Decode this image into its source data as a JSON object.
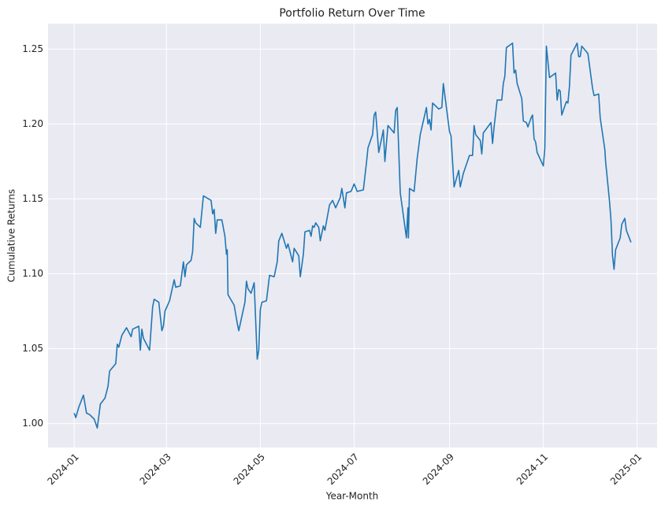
{
  "chart_data": {
    "type": "line",
    "title": "Portfolio Return Over Time",
    "x_label": "Year-Month",
    "y_label": "Cumulative Returns",
    "color": "#1f77b4",
    "grid": true,
    "xlim": [
      -17,
      379
    ],
    "ylim": [
      0.984,
      1.267
    ],
    "xticks": [
      {
        "value": 0,
        "label": "2024-01"
      },
      {
        "value": 60,
        "label": "2024-03"
      },
      {
        "value": 121,
        "label": "2024-05"
      },
      {
        "value": 182,
        "label": "2024-07"
      },
      {
        "value": 244,
        "label": "2024-09"
      },
      {
        "value": 305,
        "label": "2024-11"
      },
      {
        "value": 366,
        "label": "2025-01"
      }
    ],
    "yticks": [
      {
        "value": 1,
        "label": "1.00"
      },
      1.05,
      {
        "value": 1.1,
        "label": "1.10"
      },
      1.15,
      {
        "value": 1.2,
        "label": "1.20"
      },
      1.25
    ],
    "x": [
      0,
      1,
      3,
      6,
      8,
      10,
      13,
      15,
      17,
      20,
      22,
      23,
      27,
      28,
      29,
      31,
      34,
      37,
      38,
      42,
      43,
      44,
      45,
      49,
      51,
      52,
      55,
      57,
      58,
      59,
      62,
      65,
      66,
      69,
      71,
      72,
      73,
      76,
      77,
      78,
      79,
      82,
      84,
      89,
      90,
      91,
      92,
      93,
      96,
      98,
      99,
      99.5,
      100,
      104,
      106,
      107,
      111,
      112,
      113,
      115,
      117,
      119,
      120,
      121,
      122,
      125,
      127,
      130,
      132,
      133,
      135,
      138,
      139,
      142,
      143,
      146,
      147,
      149,
      150,
      153,
      154,
      155,
      156,
      157,
      159,
      160,
      162,
      163,
      166,
      168,
      170,
      173,
      174,
      176,
      177,
      180,
      182,
      184,
      188,
      190,
      191,
      194,
      195,
      196,
      198,
      201,
      202,
      204,
      208,
      209,
      210,
      212,
      216,
      217,
      217.3,
      218,
      221,
      223,
      225,
      229,
      230,
      231,
      232,
      233,
      237,
      239,
      240,
      244,
      245,
      247,
      250,
      251,
      253,
      257,
      259,
      260,
      261,
      264,
      265,
      266,
      271,
      272,
      273,
      275,
      278,
      279,
      280,
      281,
      285,
      286,
      287,
      288,
      291,
      292,
      294,
      295,
      297,
      298,
      299,
      300,
      301,
      305,
      306,
      307,
      309,
      313,
      314,
      315,
      316,
      317,
      320,
      321,
      322,
      323,
      327,
      328,
      329,
      330,
      334,
      337,
      338,
      341,
      342,
      343,
      345,
      345.5,
      348,
      349,
      350,
      351,
      352,
      355,
      356,
      358,
      359,
      362
    ],
    "values": [
      1.007,
      1.004,
      1.011,
      1.019,
      1.007,
      1.006,
      1.003,
      0.997,
      1.013,
      1.017,
      1.025,
      1.035,
      1.04,
      1.053,
      1.051,
      1.059,
      1.064,
      1.058,
      1.063,
      1.065,
      1.049,
      1.063,
      1.057,
      1.049,
      1.078,
      1.083,
      1.081,
      1.062,
      1.065,
      1.075,
      1.082,
      1.096,
      1.091,
      1.092,
      1.108,
      1.098,
      1.106,
      1.109,
      1.115,
      1.137,
      1.134,
      1.131,
      1.152,
      1.149,
      1.14,
      1.143,
      1.127,
      1.136,
      1.136,
      1.125,
      1.113,
      1.116,
      1.086,
      1.079,
      1.067,
      1.062,
      1.081,
      1.095,
      1.09,
      1.087,
      1.094,
      1.043,
      1.049,
      1.076,
      1.081,
      1.082,
      1.099,
      1.098,
      1.108,
      1.122,
      1.127,
      1.117,
      1.12,
      1.108,
      1.117,
      1.112,
      1.098,
      1.113,
      1.128,
      1.129,
      1.125,
      1.132,
      1.131,
      1.134,
      1.131,
      1.122,
      1.132,
      1.129,
      1.146,
      1.149,
      1.144,
      1.151,
      1.157,
      1.144,
      1.154,
      1.155,
      1.16,
      1.155,
      1.156,
      1.174,
      1.184,
      1.193,
      1.206,
      1.208,
      1.181,
      1.196,
      1.175,
      1.199,
      1.194,
      1.209,
      1.211,
      1.154,
      1.124,
      1.144,
      1.124,
      1.157,
      1.155,
      1.177,
      1.193,
      1.211,
      1.2,
      1.203,
      1.196,
      1.214,
      1.21,
      1.211,
      1.227,
      1.195,
      1.192,
      1.158,
      1.169,
      1.158,
      1.167,
      1.179,
      1.179,
      1.199,
      1.193,
      1.189,
      1.18,
      1.194,
      1.201,
      1.187,
      1.198,
      1.216,
      1.216,
      1.227,
      1.232,
      1.251,
      1.254,
      1.234,
      1.236,
      1.227,
      1.217,
      1.202,
      1.201,
      1.198,
      1.204,
      1.206,
      1.19,
      1.188,
      1.181,
      1.172,
      1.184,
      1.252,
      1.231,
      1.234,
      1.216,
      1.223,
      1.222,
      1.206,
      1.215,
      1.214,
      1.225,
      1.246,
      1.254,
      1.245,
      1.245,
      1.252,
      1.247,
      1.224,
      1.219,
      1.22,
      1.204,
      1.197,
      1.183,
      1.175,
      1.149,
      1.136,
      1.112,
      1.103,
      1.116,
      1.124,
      1.133,
      1.137,
      1.129,
      1.121
    ]
  }
}
